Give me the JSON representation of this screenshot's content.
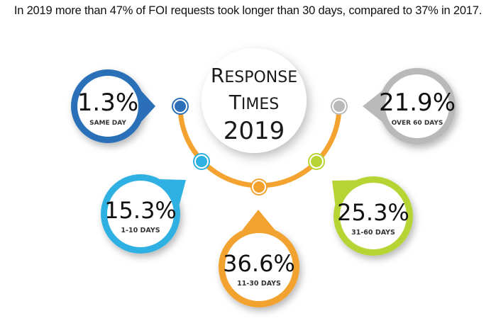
{
  "headline": "In 2019 more than 47% of FOI requests took longer than 30 days, compared to 37% in 2017.",
  "center": {
    "line1": "Response",
    "line2": "Times",
    "year": "2019"
  },
  "colors": {
    "arc": "#f4a331",
    "same_day": "#2a6fb8",
    "d1_10": "#2eb0e2",
    "d11_30": "#f2a22e",
    "d31_60": "#b7d434",
    "over60": "#b9b9b9"
  },
  "categories": [
    {
      "key": "same_day",
      "value": "1.3%",
      "label": "SAME DAY"
    },
    {
      "key": "d1_10",
      "value": "15.3%",
      "label": "1-10 DAYS"
    },
    {
      "key": "d11_30",
      "value": "36.6%",
      "label": "11-30 DAYS"
    },
    {
      "key": "d31_60",
      "value": "25.3%",
      "label": "31-60 DAYS"
    },
    {
      "key": "over60",
      "value": "21.9%",
      "label": "OVER 60 DAYS"
    }
  ],
  "chart_data": {
    "type": "pie",
    "title": "Response Times 2019",
    "categories": [
      "Same day",
      "1-10 days",
      "11-30 days",
      "31-60 days",
      "Over 60 days"
    ],
    "values": [
      1.3,
      15.3,
      36.6,
      25.3,
      21.9
    ],
    "units": "percent of FOI requests"
  }
}
